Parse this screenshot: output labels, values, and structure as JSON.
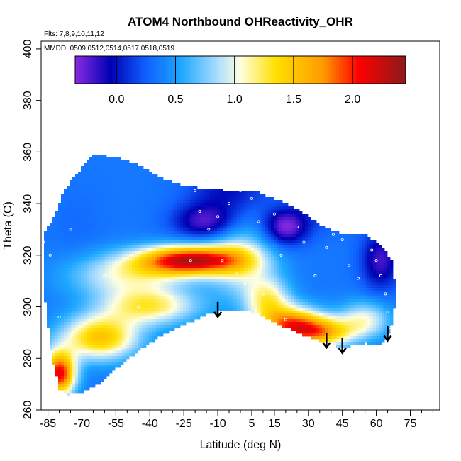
{
  "chart_data": {
    "type": "heatmap",
    "title": "ATOM4 Northbound OHReactivity_OHR",
    "flights_note": "Flts: 7,8,9,10,11,12",
    "dates_note": "MMDD: 0509,0512,0514,0517,0518,0519",
    "xlabel": "Latitude (deg N)",
    "ylabel": "Theta (C)",
    "xlim": [
      -88,
      88
    ],
    "ylim": [
      260,
      403
    ],
    "x_ticks": [
      -85,
      -70,
      -55,
      -40,
      -25,
      -10,
      5,
      15,
      30,
      45,
      60,
      75
    ],
    "x_minor_ticks": [
      -80,
      -75,
      -65,
      -60,
      -50,
      -45,
      -35,
      -30,
      -20,
      -15,
      -5,
      0,
      10,
      20,
      25,
      35,
      40,
      50,
      55,
      65,
      70,
      80,
      85
    ],
    "y_ticks": [
      260,
      280,
      300,
      320,
      340,
      360,
      380,
      400
    ],
    "colorbar": {
      "range": [
        -0.35,
        2.45
      ],
      "tick_values": [
        0.0,
        0.5,
        1.0,
        1.5,
        2.0
      ],
      "tick_labels": [
        "0.0",
        "0.5",
        "1.0",
        "1.5",
        "2.0"
      ],
      "colors": [
        {
          "v": -0.35,
          "c": "#8a2be2"
        },
        {
          "v": -0.05,
          "c": "#0000b4"
        },
        {
          "v": 0.25,
          "c": "#1060ff"
        },
        {
          "v": 0.55,
          "c": "#1ea8ff"
        },
        {
          "v": 0.85,
          "c": "#a8dcff"
        },
        {
          "v": 1.05,
          "c": "#ffffe0"
        },
        {
          "v": 1.35,
          "c": "#ffe000"
        },
        {
          "v": 1.75,
          "c": "#ff9a00"
        },
        {
          "v": 2.05,
          "c": "#ff0000"
        },
        {
          "v": 2.45,
          "c": "#8b1a1a"
        }
      ]
    },
    "field": {
      "base_value": 0.35,
      "features": [
        {
          "lat": -22,
          "theta": 318,
          "value": 2.2,
          "sx": 16,
          "sy": 4
        },
        {
          "lat": -80,
          "theta": 274,
          "value": 2.1,
          "sx": 5,
          "sy": 6
        },
        {
          "lat": -62,
          "theta": 288,
          "value": 1.5,
          "sx": 12,
          "sy": 6
        },
        {
          "lat": -40,
          "theta": 300,
          "value": 1.2,
          "sx": 15,
          "sy": 5
        },
        {
          "lat": -50,
          "theta": 312,
          "value": 1.0,
          "sx": 18,
          "sy": 6
        },
        {
          "lat": 22,
          "theta": 293,
          "value": 1.7,
          "sx": 10,
          "sy": 5
        },
        {
          "lat": 36,
          "theta": 290,
          "value": 1.45,
          "sx": 10,
          "sy": 4
        },
        {
          "lat": 12,
          "theta": 303,
          "value": 1.1,
          "sx": 7,
          "sy": 6
        },
        {
          "lat": 0,
          "theta": 318,
          "value": 0.95,
          "sx": 10,
          "sy": 10
        },
        {
          "lat": 55,
          "theta": 295,
          "value": 1.0,
          "sx": 8,
          "sy": 5
        },
        {
          "lat": -15,
          "theta": 333,
          "value": -0.25,
          "sx": 10,
          "sy": 5
        },
        {
          "lat": 20,
          "theta": 331,
          "value": -0.35,
          "sx": 7,
          "sy": 5
        },
        {
          "lat": 62,
          "theta": 318,
          "value": -0.2,
          "sx": 6,
          "sy": 8
        },
        {
          "lat": -5,
          "theta": 345,
          "value": 0.0,
          "sx": 12,
          "sy": 6
        },
        {
          "lat": 40,
          "theta": 340,
          "value": 0.05,
          "sx": 10,
          "sy": 6
        },
        {
          "lat": -72,
          "theta": 332,
          "value": 0.3,
          "sx": 8,
          "sy": 10
        }
      ]
    },
    "coverage": {
      "upper": [
        [
          -87,
          328
        ],
        [
          -82,
          335
        ],
        [
          -78,
          345
        ],
        [
          -72,
          352
        ],
        [
          -65,
          359
        ],
        [
          -55,
          358
        ],
        [
          -45,
          355
        ],
        [
          -35,
          350
        ],
        [
          -25,
          347
        ],
        [
          -15,
          346
        ],
        [
          -5,
          345
        ],
        [
          5,
          345
        ],
        [
          15,
          342
        ],
        [
          25,
          338
        ],
        [
          35,
          332
        ],
        [
          45,
          328
        ],
        [
          55,
          328
        ],
        [
          62,
          324
        ],
        [
          67,
          318
        ],
        [
          68,
          310
        ]
      ],
      "lower": [
        [
          68,
          300
        ],
        [
          66,
          290
        ],
        [
          62,
          285
        ],
        [
          55,
          286
        ],
        [
          45,
          284
        ],
        [
          35,
          287
        ],
        [
          25,
          290
        ],
        [
          15,
          294
        ],
        [
          5,
          298
        ],
        [
          -5,
          299
        ],
        [
          -15,
          297
        ],
        [
          -25,
          293
        ],
        [
          -35,
          289
        ],
        [
          -45,
          283
        ],
        [
          -55,
          276
        ],
        [
          -62,
          270
        ],
        [
          -70,
          267
        ],
        [
          -76,
          266
        ],
        [
          -80,
          268
        ],
        [
          -84,
          285
        ],
        [
          -86,
          300
        ],
        [
          -87,
          312
        ]
      ]
    },
    "arrow_latitudes": [
      -10,
      38,
      45,
      65
    ],
    "flight_points": [
      [
        -87,
        325
      ],
      [
        -84,
        320
      ],
      [
        -80,
        296
      ],
      [
        -85,
        288
      ],
      [
        -75,
        330
      ],
      [
        -60,
        312
      ],
      [
        -45,
        300
      ],
      [
        -20,
        345
      ],
      [
        -18,
        337
      ],
      [
        -14,
        330
      ],
      [
        -10,
        335
      ],
      [
        -22,
        318
      ],
      [
        -5,
        340
      ],
      [
        0,
        345
      ],
      [
        5,
        342
      ],
      [
        8,
        333
      ],
      [
        11,
        346
      ],
      [
        15,
        336
      ],
      [
        18,
        320
      ],
      [
        22,
        343
      ],
      [
        25,
        331
      ],
      [
        28,
        325
      ],
      [
        20,
        295
      ],
      [
        33,
        312
      ],
      [
        38,
        323
      ],
      [
        41,
        328
      ],
      [
        45,
        326
      ],
      [
        48,
        316
      ],
      [
        52,
        311
      ],
      [
        55,
        296
      ],
      [
        58,
        322
      ],
      [
        60,
        318
      ],
      [
        62,
        312
      ],
      [
        64,
        305
      ],
      [
        65,
        298
      ],
      [
        66,
        292
      ],
      [
        -8,
        318
      ],
      [
        -2,
        313
      ],
      [
        2,
        309
      ],
      [
        10,
        305
      ]
    ]
  }
}
